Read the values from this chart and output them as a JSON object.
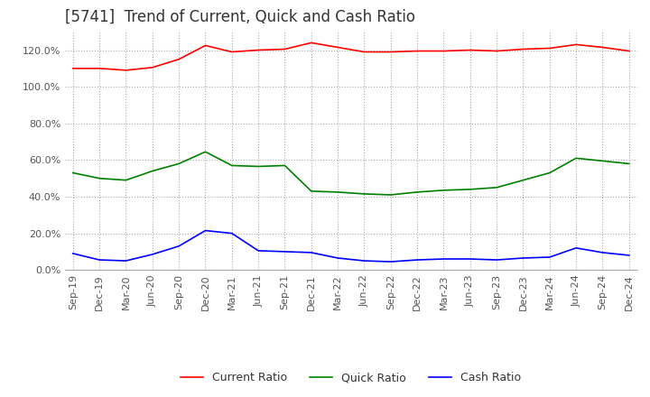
{
  "title": "[5741]  Trend of Current, Quick and Cash Ratio",
  "x_labels": [
    "Sep-19",
    "Dec-19",
    "Mar-20",
    "Jun-20",
    "Sep-20",
    "Dec-20",
    "Mar-21",
    "Jun-21",
    "Sep-21",
    "Dec-21",
    "Mar-22",
    "Jun-22",
    "Sep-22",
    "Dec-22",
    "Mar-23",
    "Jun-23",
    "Sep-23",
    "Dec-23",
    "Mar-24",
    "Jun-24",
    "Sep-24",
    "Dec-24"
  ],
  "current_ratio": [
    110.0,
    110.0,
    109.0,
    110.5,
    115.0,
    122.5,
    119.0,
    120.0,
    120.5,
    124.0,
    121.5,
    119.0,
    119.0,
    119.5,
    119.5,
    120.0,
    119.5,
    120.5,
    121.0,
    123.0,
    121.5,
    119.5
  ],
  "quick_ratio": [
    53.0,
    50.0,
    49.0,
    54.0,
    58.0,
    64.5,
    57.0,
    56.5,
    57.0,
    43.0,
    42.5,
    41.5,
    41.0,
    42.5,
    43.5,
    44.0,
    45.0,
    49.0,
    53.0,
    61.0,
    59.5,
    58.0
  ],
  "cash_ratio": [
    9.0,
    5.5,
    5.0,
    8.5,
    13.0,
    21.5,
    20.0,
    10.5,
    10.0,
    9.5,
    6.5,
    5.0,
    4.5,
    5.5,
    6.0,
    6.0,
    5.5,
    6.5,
    7.0,
    12.0,
    9.5,
    8.0
  ],
  "current_color": "#ff0000",
  "quick_color": "#008000",
  "cash_color": "#0000ff",
  "ylim": [
    0.0,
    130.0
  ],
  "yticks": [
    0.0,
    20.0,
    40.0,
    60.0,
    80.0,
    100.0,
    120.0
  ],
  "background_color": "#ffffff",
  "grid_color": "#aaaaaa",
  "title_fontsize": 12,
  "tick_fontsize": 8,
  "legend_fontsize": 9,
  "line_width": 1.2
}
